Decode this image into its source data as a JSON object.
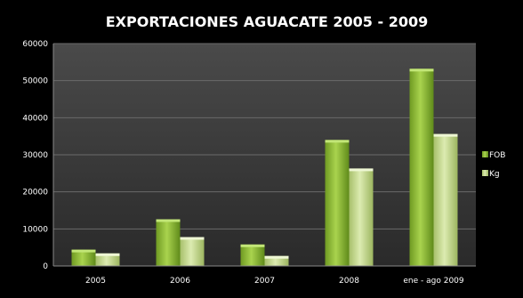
{
  "chart_data": {
    "type": "bar",
    "title": "EXPORTACIONES AGUACATE 2005 - 2009",
    "xlabel": "",
    "ylabel": "",
    "categories": [
      "2005",
      "2006",
      "2007",
      "2008",
      "ene - ago 2009"
    ],
    "series": [
      {
        "name": "FOB",
        "values": [
          4400,
          12600,
          5800,
          34000,
          53200
        ],
        "color": "#8fbf3a"
      },
      {
        "name": "Kg",
        "values": [
          3400,
          7800,
          2700,
          26300,
          35600
        ],
        "color": "#c7dd8e"
      }
    ],
    "ylim": [
      0,
      60000
    ],
    "yticks": [
      "0",
      "10000",
      "20000",
      "30000",
      "40000",
      "50000",
      "60000"
    ],
    "grid": true,
    "legend_position": "right",
    "colors": {
      "background": "#000000",
      "plot_background": "#3b3b3b",
      "text": "#ffffff",
      "gridline": "#6a6a6a"
    }
  }
}
